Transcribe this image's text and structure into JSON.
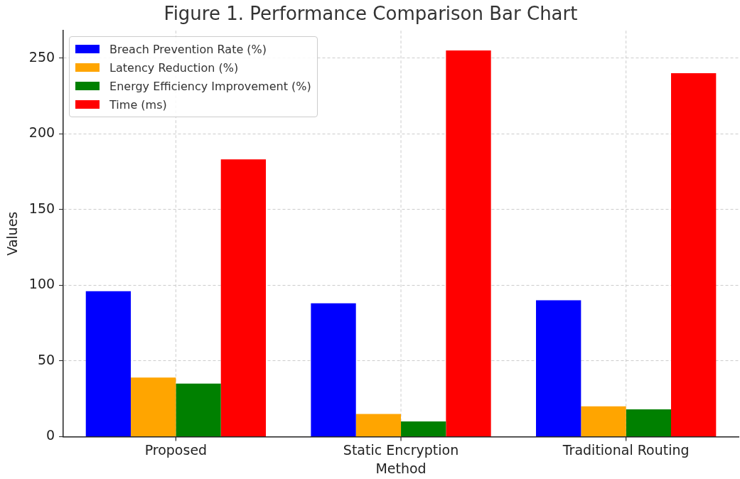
{
  "chart_data": {
    "type": "bar",
    "title": "Figure 1. Performance Comparison Bar Chart",
    "xlabel": "Method",
    "ylabel": "Values",
    "categories": [
      "Proposed",
      "Static Encryption",
      "Traditional Routing"
    ],
    "series": [
      {
        "name": "Breach Prevention Rate (%)",
        "color": "#0000ff",
        "values": [
          96,
          88,
          90
        ]
      },
      {
        "name": "Latency Reduction (%)",
        "color": "#ffa500",
        "values": [
          39,
          15,
          20
        ]
      },
      {
        "name": "Energy Efficiency Improvement (%)",
        "color": "#008000",
        "values": [
          35,
          10,
          18
        ]
      },
      {
        "name": "Time (ms)",
        "color": "#ff0000",
        "values": [
          183,
          255,
          240
        ]
      }
    ],
    "ylim": [
      0,
      268
    ],
    "yticks": [
      0,
      50,
      100,
      150,
      200,
      250
    ],
    "grid": true,
    "legend": "top left"
  }
}
